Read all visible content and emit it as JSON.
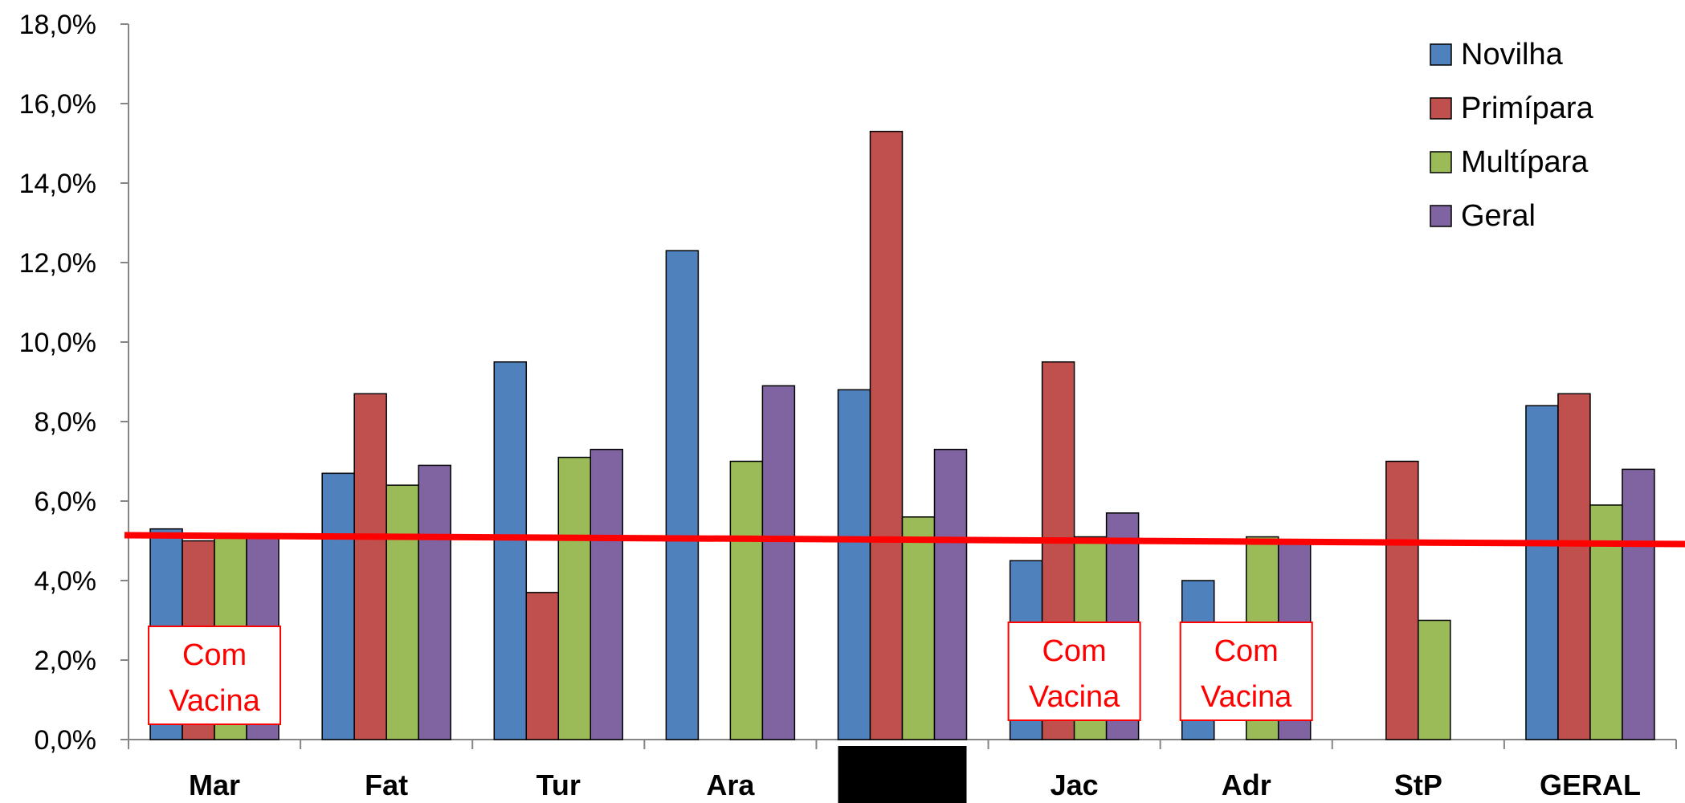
{
  "chart_data": {
    "type": "bar",
    "categories": [
      "Mar",
      "Fat",
      "Tur",
      "Ara",
      "",
      "Jac",
      "Adr",
      "StP",
      "GERAL"
    ],
    "series": [
      {
        "name": "Novilha",
        "color": "#4f81bd",
        "values": [
          5.3,
          6.7,
          9.5,
          12.3,
          8.8,
          4.5,
          4.0,
          null,
          8.4
        ]
      },
      {
        "name": "Primípara",
        "color": "#c0504d",
        "values": [
          5.0,
          8.7,
          3.7,
          null,
          15.3,
          9.5,
          null,
          7.0,
          8.7
        ]
      },
      {
        "name": "Multípara",
        "color": "#9bbb59",
        "values": [
          5.1,
          6.4,
          7.1,
          7.0,
          5.6,
          5.1,
          5.1,
          3.0,
          5.9
        ]
      },
      {
        "name": "Geral",
        "color": "#8064a2",
        "values": [
          5.1,
          6.9,
          7.3,
          8.9,
          7.3,
          5.7,
          5.0,
          null,
          6.8
        ]
      }
    ],
    "y_ticks": [
      "0,0%",
      "2,0%",
      "4,0%",
      "6,0%",
      "8,0%",
      "10,0%",
      "12,0%",
      "14,0%",
      "16,0%",
      "18,0%"
    ],
    "ylim": [
      0,
      18
    ],
    "title": "",
    "xlabel": "",
    "ylabel": "",
    "grid": false,
    "legend_position": "top-right",
    "reference_line": {
      "start_value": 5.1,
      "end_value": 5.0,
      "color": "#ff0000"
    },
    "redacted_category_index": 4,
    "annotations": [
      {
        "category_index": 0,
        "line1": "Com",
        "line2": "Vacina"
      },
      {
        "category_index": 5,
        "line1": "Com",
        "line2": "Vacina"
      },
      {
        "category_index": 6,
        "line1": "Com",
        "line2": "Vacina"
      }
    ]
  }
}
